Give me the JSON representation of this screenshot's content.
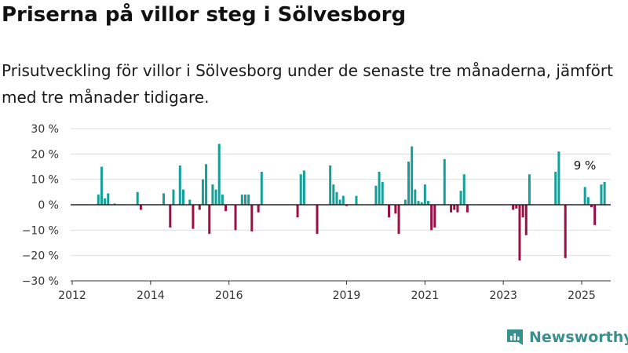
{
  "title": "Priserna på villor steg i Sölvesborg",
  "subtitle": "Prisutveckling för villor i Sölvesborg under de senaste tre månaderna, jämfört med tre månader tidigare.",
  "brand": "Newsworthy",
  "colors": {
    "positive": "#14a098",
    "negative": "#9b0f45",
    "zero_line": "#222222",
    "grid": "#dddddd",
    "brand": "#3a8f8f"
  },
  "chart_data": {
    "type": "bar",
    "title": "Priserna på villor steg i Sölvesborg",
    "ylim": [
      -30,
      30
    ],
    "y_ticks": [
      -30,
      -20,
      -10,
      0,
      10,
      20,
      30
    ],
    "y_tick_labels": [
      "−30 %",
      "−20 %",
      "−10 %",
      "0 %",
      "10 %",
      "20 %",
      "30 %"
    ],
    "x_range": [
      "2012-01",
      "2025-08"
    ],
    "x_ticks": [
      "2012-01",
      "2014-01",
      "2016-01",
      "2019-01",
      "2021-01",
      "2023-01",
      "2025-01"
    ],
    "x_tick_labels": [
      "2012",
      "2014",
      "2016",
      "2019",
      "2021",
      "2023",
      "2025"
    ],
    "grid": true,
    "annotation": {
      "text": "9 %",
      "x": "2025-01",
      "y": 9
    },
    "series": [
      {
        "values": [
          [
            "2012-09",
            4
          ],
          [
            "2012-10",
            15
          ],
          [
            "2012-11",
            2.5
          ],
          [
            "2012-12",
            4.5
          ],
          [
            "2013-02",
            0.5
          ],
          [
            "2013-09",
            5
          ],
          [
            "2013-10",
            -2
          ],
          [
            "2014-05",
            4.5
          ],
          [
            "2014-07",
            -9
          ],
          [
            "2014-08",
            6
          ],
          [
            "2014-10",
            15.5
          ],
          [
            "2014-11",
            6
          ],
          [
            "2015-01",
            2
          ],
          [
            "2015-02",
            -9.5
          ],
          [
            "2015-04",
            -2
          ],
          [
            "2015-05",
            10
          ],
          [
            "2015-06",
            16
          ],
          [
            "2015-07",
            -11.5
          ],
          [
            "2015-08",
            8
          ],
          [
            "2015-09",
            6
          ],
          [
            "2015-10",
            24
          ],
          [
            "2015-11",
            4
          ],
          [
            "2015-12",
            -2.5
          ],
          [
            "2016-03",
            -10
          ],
          [
            "2016-05",
            4
          ],
          [
            "2016-06",
            4
          ],
          [
            "2016-07",
            4
          ],
          [
            "2016-08",
            -10.5
          ],
          [
            "2016-10",
            -3
          ],
          [
            "2016-11",
            13
          ],
          [
            "2017-10",
            -5
          ],
          [
            "2017-11",
            12
          ],
          [
            "2017-12",
            13.5
          ],
          [
            "2018-04",
            -11.5
          ],
          [
            "2018-08",
            15.5
          ],
          [
            "2018-09",
            8
          ],
          [
            "2018-10",
            5
          ],
          [
            "2018-11",
            2
          ],
          [
            "2018-12",
            3.5
          ],
          [
            "2019-01",
            -0.5
          ],
          [
            "2019-04",
            3.5
          ],
          [
            "2019-10",
            7.5
          ],
          [
            "2019-11",
            13
          ],
          [
            "2019-12",
            9
          ],
          [
            "2020-02",
            -5
          ],
          [
            "2020-04",
            -3.5
          ],
          [
            "2020-05",
            -11.5
          ],
          [
            "2020-07",
            2
          ],
          [
            "2020-08",
            17
          ],
          [
            "2020-09",
            23
          ],
          [
            "2020-10",
            6
          ],
          [
            "2020-11",
            1.5
          ],
          [
            "2020-12",
            1
          ],
          [
            "2021-01",
            8
          ],
          [
            "2021-02",
            1.5
          ],
          [
            "2021-03",
            -10
          ],
          [
            "2021-04",
            -9
          ],
          [
            "2021-07",
            18
          ],
          [
            "2021-09",
            -3
          ],
          [
            "2021-10",
            -2
          ],
          [
            "2021-11",
            -3
          ],
          [
            "2021-12",
            5.5
          ],
          [
            "2022-01",
            12
          ],
          [
            "2022-02",
            -3
          ],
          [
            "2023-04",
            -2
          ],
          [
            "2023-05",
            -1.5
          ],
          [
            "2023-06",
            -22
          ],
          [
            "2023-07",
            -5
          ],
          [
            "2023-08",
            -12
          ],
          [
            "2023-09",
            12
          ],
          [
            "2024-05",
            13
          ],
          [
            "2024-06",
            21
          ],
          [
            "2024-08",
            -21
          ],
          [
            "2025-02",
            7
          ],
          [
            "2025-03",
            3
          ],
          [
            "2025-04",
            -1
          ],
          [
            "2025-05",
            -8
          ],
          [
            "2025-07",
            8
          ],
          [
            "2025-08",
            9
          ]
        ]
      }
    ]
  }
}
